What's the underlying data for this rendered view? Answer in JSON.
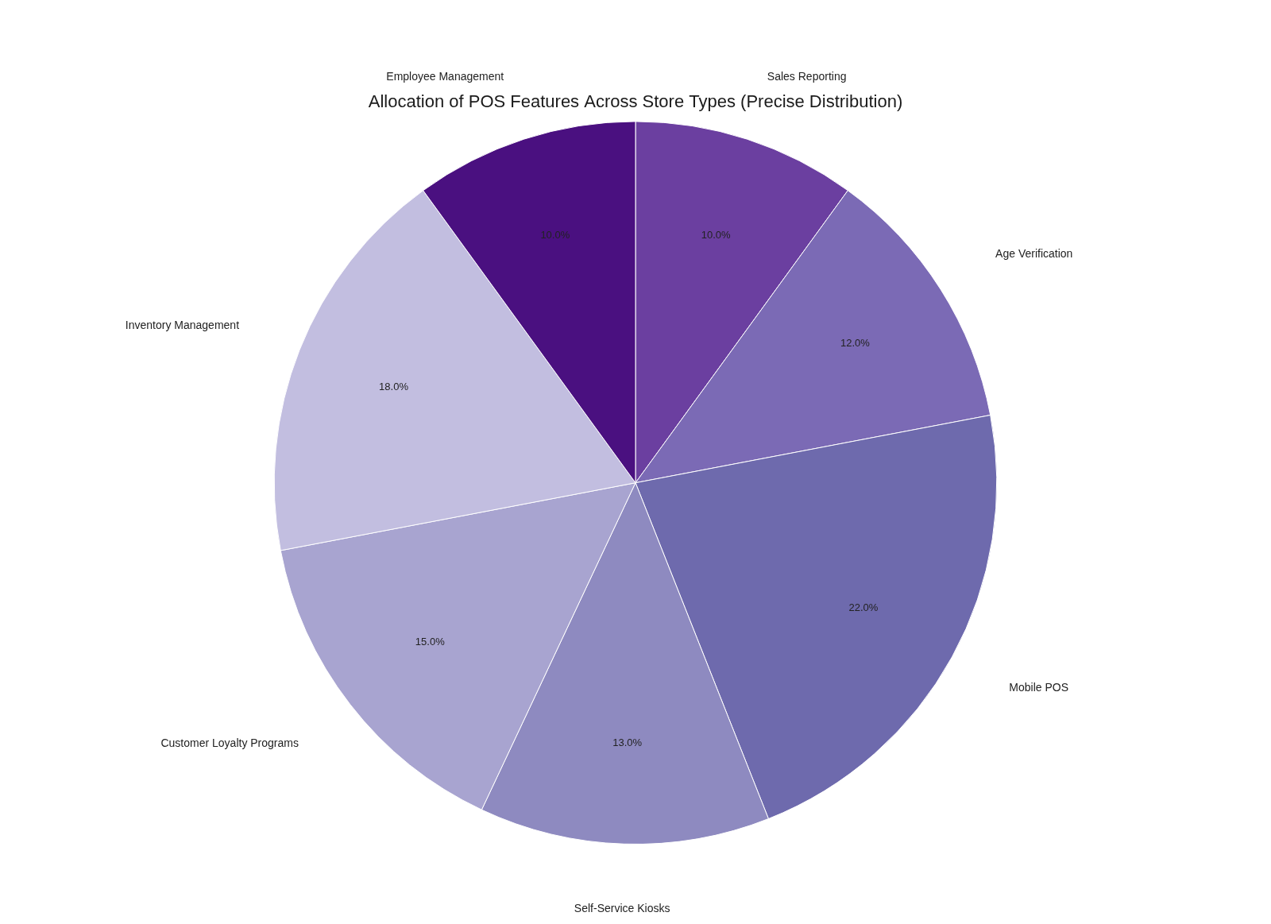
{
  "chart_data": {
    "type": "pie",
    "title": "Allocation of POS Features Across Store Types (Precise Distribution)",
    "categories": [
      "Sales Reporting",
      "Age Verification",
      "Mobile POS",
      "Self-Service Kiosks",
      "Customer Loyalty Programs",
      "Inventory Management",
      "Employee Management"
    ],
    "values": [
      10.0,
      12.0,
      22.0,
      13.0,
      15.0,
      18.0,
      10.0
    ],
    "value_labels": [
      "10.0%",
      "12.0%",
      "22.0%",
      "13.0%",
      "15.0%",
      "18.0%",
      "10.0%"
    ],
    "colors": [
      "#6b3fa0",
      "#7b6ab5",
      "#6e6aad",
      "#8e8ac0",
      "#a8a4d0",
      "#c2bee0",
      "#4a1080"
    ],
    "data_labels": true
  }
}
